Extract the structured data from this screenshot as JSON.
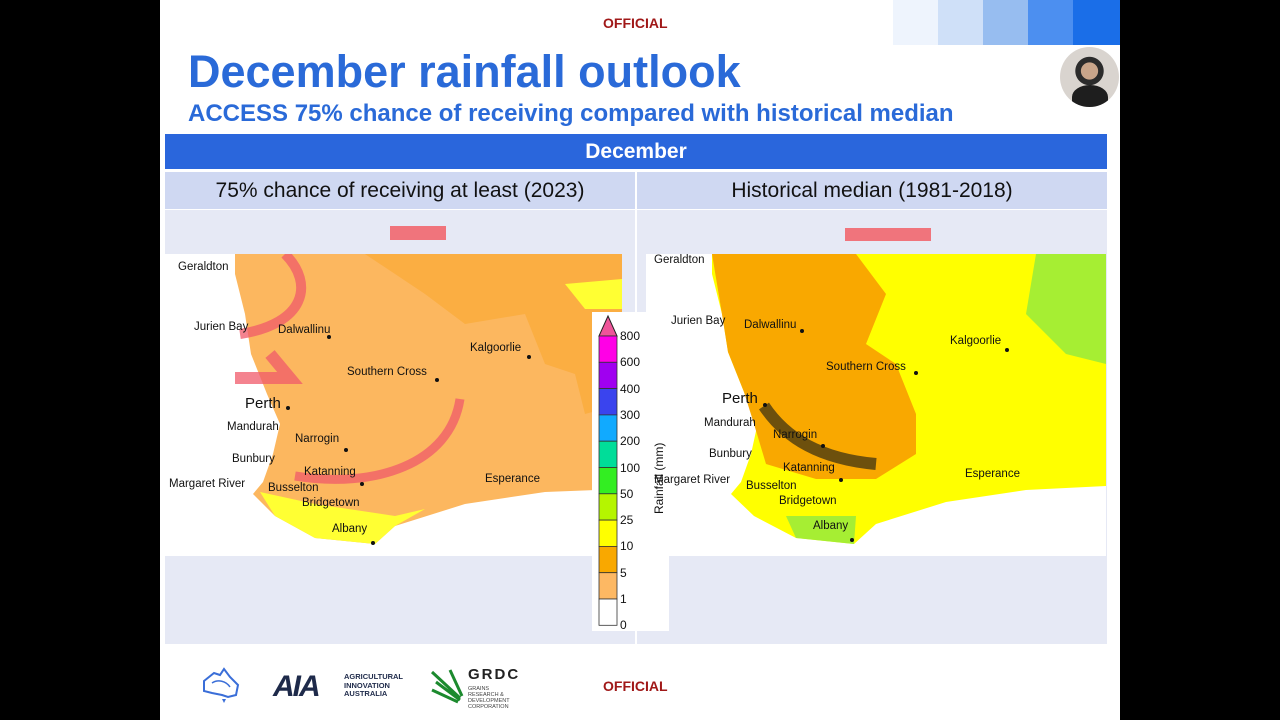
{
  "classification": "OFFICIAL",
  "title": "December rainfall outlook",
  "subtitle": "ACCESS 75% chance of receiving compared with historical median",
  "month_bar": "December",
  "panels": [
    {
      "heading": "75% chance of receiving at least (2023)"
    },
    {
      "heading": "Historical median (1981-2018)"
    }
  ],
  "cities": [
    "Geraldton",
    "Jurien Bay",
    "Dalwallinu",
    "Kalgoorlie",
    "Southern Cross",
    "Perth",
    "Mandurah",
    "Narrogin",
    "Bunbury",
    "Katanning",
    "Margaret River",
    "Busselton",
    "Bridgetown",
    "Esperance",
    "Albany"
  ],
  "colorbar": {
    "label": "Rainfall (mm)",
    "ticks": [
      "800",
      "600",
      "400",
      "300",
      "200",
      "100",
      "50",
      "25",
      "10",
      "5",
      "1",
      "0"
    ],
    "colors": [
      "#ff00e6",
      "#a000f0",
      "#3a44ee",
      "#11aaff",
      "#00dd99",
      "#33ee22",
      "#b5f500",
      "#ffff00",
      "#f9a800",
      "#fdb863",
      "#ffffff"
    ],
    "extend_color": "#ee5599"
  },
  "logos": {
    "aia": "AGRICULTURAL INNOVATION AUSTRALIA",
    "aia_mark": "AIA",
    "grdc": "GRDC",
    "grdc_sub": "GRAINS RESEARCH & DEVELOPMENT CORPORATION"
  },
  "colors": {
    "accent": "#2a6ad8",
    "official": "#a01818"
  }
}
